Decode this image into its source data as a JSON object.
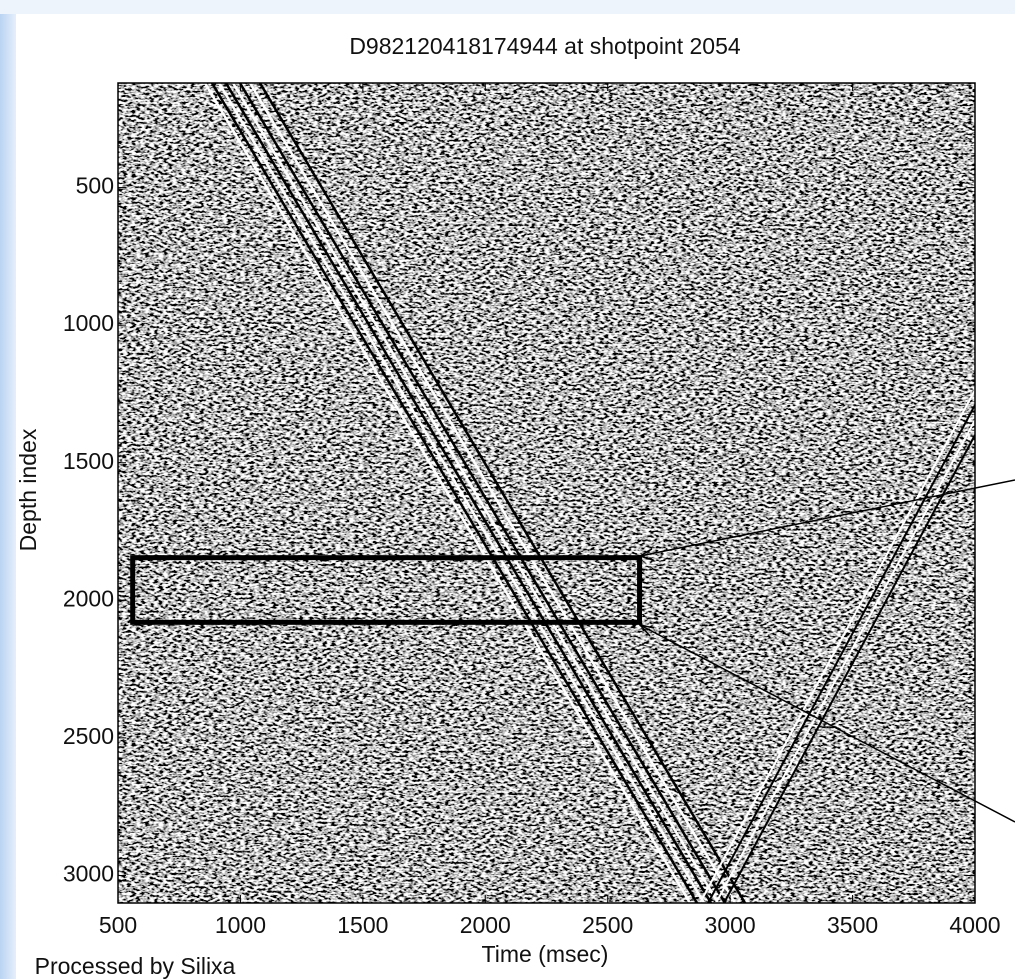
{
  "chart_data": {
    "type": "image",
    "title": "D982120418174944 at shotpoint 2054",
    "x_label": "Time (msec)",
    "y_label": "Depth index",
    "footer": "Processed by Silixa",
    "xlim": [
      500,
      4000
    ],
    "xticks": [
      500,
      1000,
      1500,
      2000,
      2500,
      3000,
      3500,
      4000
    ],
    "ylim": [
      120,
      3100
    ],
    "yticks": [
      500,
      1000,
      1500,
      2000,
      2500,
      3000
    ],
    "y_inverted": true,
    "highlight": {
      "x": [
        560,
        2630
      ],
      "y": [
        1845,
        2080
      ],
      "color": "#000000"
    }
  }
}
